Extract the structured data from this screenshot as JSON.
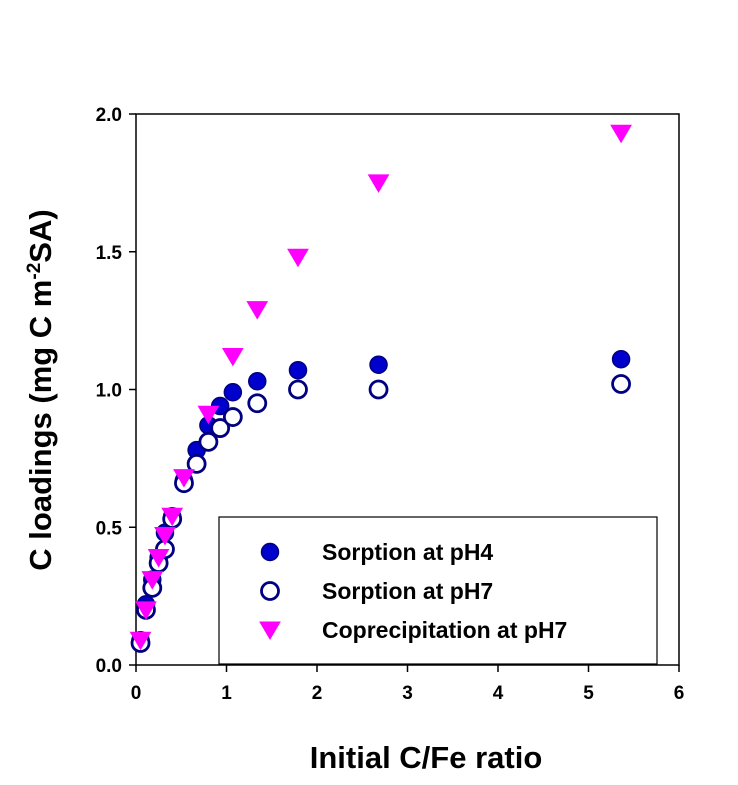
{
  "chart_data": {
    "type": "scatter",
    "title": "",
    "xlabel": "Initial C/Fe ratio",
    "ylabel_parts": {
      "before": "C loadings (mg C m",
      "sup": "-2",
      "after": "SA)"
    },
    "xlim": [
      0,
      6
    ],
    "ylim": [
      0,
      2.0
    ],
    "x_ticks": [
      "0",
      "1",
      "2",
      "3",
      "4",
      "5",
      "6"
    ],
    "y_ticks": [
      "0.0",
      "0.5",
      "1.0",
      "1.5",
      "2.0"
    ],
    "grid": false,
    "legend_position": "bottom-right",
    "series": [
      {
        "name": "Sorption at pH4",
        "marker": "circle-filled",
        "color": "#0000cc",
        "edge": "#000080",
        "points": [
          [
            0.05,
            0.09
          ],
          [
            0.11,
            0.22
          ],
          [
            0.18,
            0.31
          ],
          [
            0.25,
            0.39
          ],
          [
            0.32,
            0.48
          ],
          [
            0.4,
            0.54
          ],
          [
            0.53,
            0.67
          ],
          [
            0.67,
            0.78
          ],
          [
            0.8,
            0.87
          ],
          [
            0.93,
            0.94
          ],
          [
            1.07,
            0.99
          ],
          [
            1.34,
            1.03
          ],
          [
            1.79,
            1.07
          ],
          [
            2.68,
            1.09
          ],
          [
            5.36,
            1.11
          ]
        ]
      },
      {
        "name": "Sorption at pH7",
        "marker": "circle-open",
        "color": "#ffffff",
        "edge": "#000080",
        "points": [
          [
            0.05,
            0.08
          ],
          [
            0.11,
            0.2
          ],
          [
            0.18,
            0.28
          ],
          [
            0.25,
            0.37
          ],
          [
            0.32,
            0.42
          ],
          [
            0.4,
            0.53
          ],
          [
            0.53,
            0.66
          ],
          [
            0.67,
            0.73
          ],
          [
            0.8,
            0.81
          ],
          [
            0.93,
            0.86
          ],
          [
            1.07,
            0.9
          ],
          [
            1.34,
            0.95
          ],
          [
            1.79,
            1.0
          ],
          [
            2.68,
            1.0
          ],
          [
            5.36,
            1.02
          ]
        ]
      },
      {
        "name": "Coprecipitation at pH7",
        "marker": "triangle-down",
        "color": "#ff00ff",
        "edge": "#ff00ff",
        "points": [
          [
            0.05,
            0.09
          ],
          [
            0.11,
            0.2
          ],
          [
            0.18,
            0.31
          ],
          [
            0.25,
            0.39
          ],
          [
            0.32,
            0.47
          ],
          [
            0.4,
            0.54
          ],
          [
            0.53,
            0.68
          ],
          [
            0.8,
            0.91
          ],
          [
            1.07,
            1.12
          ],
          [
            1.34,
            1.29
          ],
          [
            1.79,
            1.48
          ],
          [
            2.68,
            1.75
          ],
          [
            5.36,
            1.93
          ]
        ]
      }
    ]
  }
}
